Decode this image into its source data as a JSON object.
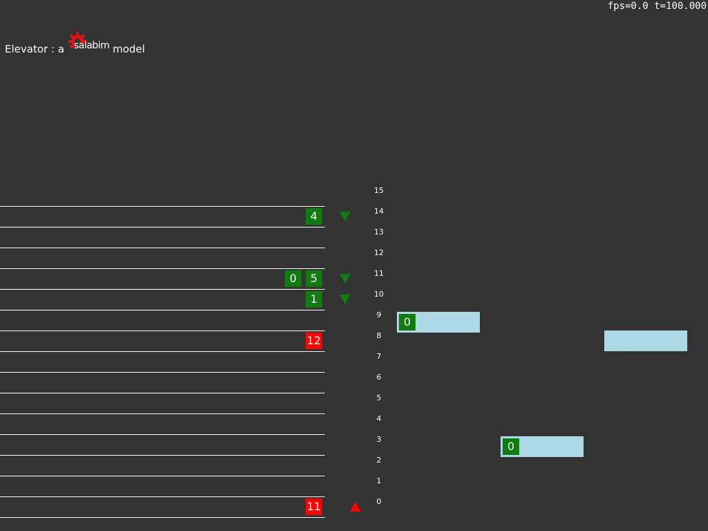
{
  "status": {
    "text": "fps=0.0 t=100.000"
  },
  "title": {
    "prefix": "Elevator : a",
    "logo_text": "salabim",
    "suffix": "model"
  },
  "colors": {
    "background": "#333333",
    "direction_down": "#107c10",
    "direction_up": "#ff0000",
    "car": "#add8e6"
  },
  "floors": {
    "labels": [
      "15",
      "14",
      "13",
      "12",
      "11",
      "10",
      "9",
      "8",
      "7",
      "6",
      "5",
      "4",
      "3",
      "2",
      "1",
      "0"
    ]
  },
  "queues": {
    "floor14": {
      "visitors": [
        "4"
      ],
      "direction": "down"
    },
    "floor11": {
      "visitors": [
        "0",
        "5"
      ],
      "direction": "down"
    },
    "floor10": {
      "visitors": [
        "1"
      ],
      "direction": "down"
    },
    "floor8": {
      "visitors": [
        "12"
      ]
    },
    "floor0": {
      "visitors": [
        "11"
      ],
      "direction": "up"
    }
  },
  "cars": [
    {
      "floor": 9,
      "visitors": [
        "0"
      ]
    },
    {
      "floor": 3,
      "visitors": [
        "0"
      ]
    },
    {
      "floor": 8,
      "visitors": []
    }
  ]
}
